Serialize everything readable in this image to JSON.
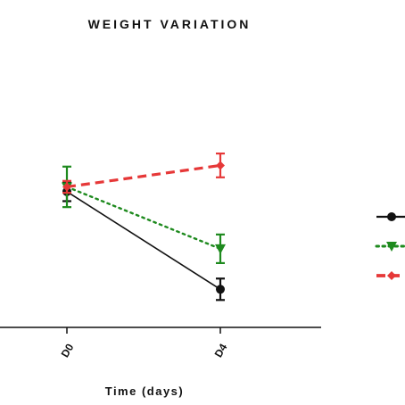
{
  "chart_data": {
    "type": "line",
    "title": "WEIGHT VARIATION",
    "xlabel": "Time (days)",
    "ylabel": "",
    "categories": [
      "D0",
      "D4"
    ],
    "ylim": [
      0,
      100
    ],
    "grid": false,
    "legend_placement": "right",
    "series": [
      {
        "color": "#111111",
        "line_style": "solid",
        "marker": "circle",
        "values": [
          57,
          16
        ],
        "errors": [
          4,
          4.5
        ]
      },
      {
        "color": "#1e8a1e",
        "line_style": "dotted",
        "marker": "triangle-down",
        "values": [
          59,
          33
        ],
        "errors": [
          8.5,
          6
        ]
      },
      {
        "color": "#e63838",
        "line_style": "dashed",
        "marker": "diamond",
        "values": [
          59,
          68
        ],
        "errors": [
          2.5,
          5
        ]
      }
    ]
  }
}
